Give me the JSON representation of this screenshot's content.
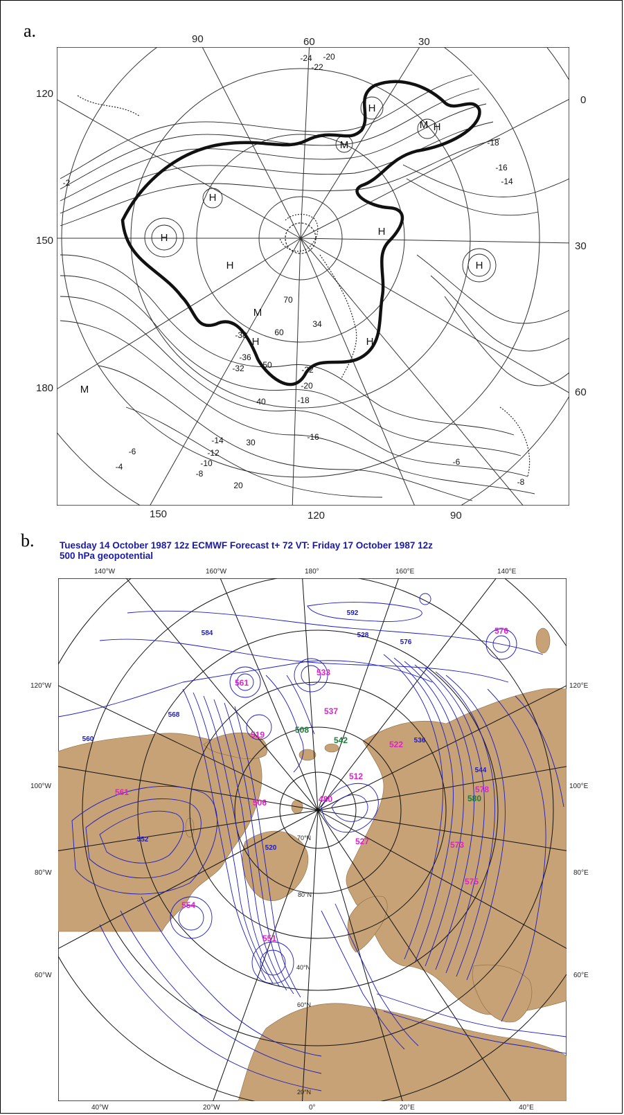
{
  "panel_a": {
    "label": "a.",
    "top_ticks": [
      "90",
      "60",
      "30"
    ],
    "left_ticks": [
      "120",
      "150",
      "180"
    ],
    "right_ticks": [
      "0",
      "30",
      "60"
    ],
    "bottom_ticks": [
      "150",
      "120",
      "90"
    ],
    "highs": [
      "H",
      "H",
      "H",
      "H",
      "H",
      "H",
      "H",
      "H",
      "H"
    ],
    "lows": [
      "M",
      "M",
      "M",
      "M"
    ],
    "contour_labels": [
      "-24",
      "-20",
      "-22",
      "-18",
      "-16",
      "-14",
      "-2",
      "70",
      "34",
      "60",
      "-38",
      "-36",
      "-32",
      "50",
      "-22",
      "-20",
      "40",
      "-18",
      "-16",
      "-14",
      "-12",
      "30",
      "-10",
      "-8",
      "20",
      "-6",
      "-4",
      "-6",
      "-8"
    ]
  },
  "panel_b": {
    "label": "b.",
    "header_line1": "Tuesday   14 October 1987 12z ECMWF Forecast t+ 72  VT: Friday    17 October 1987 12z",
    "header_line2": "500  hPa geopotential",
    "top_ticks": [
      "140°W",
      "160°W",
      "180°",
      "160°E",
      "140°E"
    ],
    "left_ticks": [
      "120°W",
      "100°W",
      "80°W",
      "60°W"
    ],
    "right_ticks": [
      "120°E",
      "100°E",
      "80°E",
      "60°E"
    ],
    "bottom_ticks": [
      "40°W",
      "20°W",
      "0°",
      "20°E",
      "40°E"
    ],
    "lat_labels": [
      "40°N",
      "60°N",
      "20°N",
      "70°N",
      "80°N"
    ],
    "magenta_values": [
      "576",
      "561",
      "533",
      "537",
      "519",
      "522",
      "512",
      "506",
      "480",
      "561",
      "554",
      "527",
      "578",
      "573",
      "575",
      "551"
    ],
    "green_values": [
      "508",
      "542",
      "580"
    ],
    "blue_contours": [
      "592",
      "584",
      "576",
      "568",
      "560",
      "552",
      "544",
      "536",
      "528",
      "520"
    ],
    "colors": {
      "land": "#c6a276",
      "contour": "#1c1cc0",
      "high_label": "#e020c8",
      "low_label": "#1a7a3a",
      "title": "#1a1aa6"
    }
  }
}
